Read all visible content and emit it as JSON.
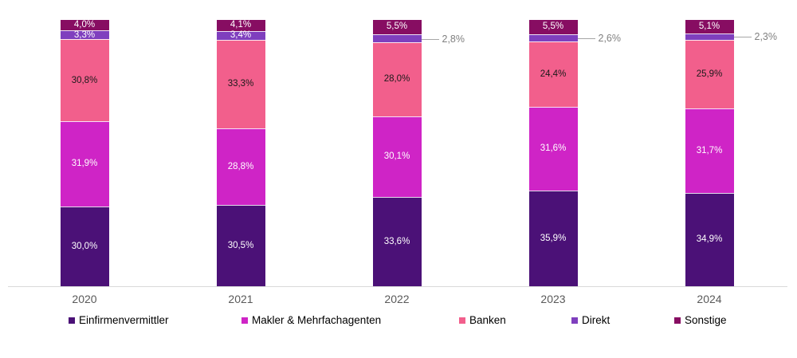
{
  "chart_data": {
    "type": "bar",
    "stacked": true,
    "orientation": "vertical",
    "title": "",
    "xlabel": "",
    "ylabel": "",
    "ylim": [
      0,
      100
    ],
    "grid": false,
    "legend_position": "bottom",
    "categories": [
      "2020",
      "2021",
      "2022",
      "2023",
      "2024"
    ],
    "series": [
      {
        "name": "Einfirmenvermittler",
        "color": "#4B1177",
        "label_color": "#FFFFFF",
        "values": [
          30.0,
          30.5,
          33.6,
          35.9,
          34.9
        ],
        "labels": [
          "30,0%",
          "30,5%",
          "33,6%",
          "35,9%",
          "34,9%"
        ],
        "label_outside": [
          false,
          false,
          false,
          false,
          false
        ]
      },
      {
        "name": "Makler & Mehrfachagenten",
        "color": "#CF24C6",
        "label_color": "#FFFFFF",
        "values": [
          31.9,
          28.8,
          30.1,
          31.6,
          31.7
        ],
        "labels": [
          "31,9%",
          "28,8%",
          "30,1%",
          "31,6%",
          "31,7%"
        ],
        "label_outside": [
          false,
          false,
          false,
          false,
          false
        ]
      },
      {
        "name": "Banken",
        "color": "#F25F8C",
        "label_color": "#1A1A1A",
        "values": [
          30.8,
          33.3,
          28.0,
          24.4,
          25.9
        ],
        "labels": [
          "30,8%",
          "33,3%",
          "28,0%",
          "24,4%",
          "25,9%"
        ],
        "label_outside": [
          false,
          false,
          false,
          false,
          false
        ]
      },
      {
        "name": "Direkt",
        "color": "#7F3FBE",
        "label_color": "#FFFFFF",
        "values": [
          3.3,
          3.4,
          2.8,
          2.6,
          2.3
        ],
        "labels": [
          "3,3%",
          "3,4%",
          "2,8%",
          "2,6%",
          "2,3%"
        ],
        "label_outside": [
          false,
          false,
          true,
          true,
          true
        ]
      },
      {
        "name": "Sonstige",
        "color": "#870D62",
        "label_color": "#FFFFFF",
        "values": [
          4.0,
          4.1,
          5.5,
          5.5,
          5.1
        ],
        "labels": [
          "4,0%",
          "4,1%",
          "5,5%",
          "5,5%",
          "5,1%"
        ],
        "label_outside": [
          false,
          false,
          false,
          false,
          false
        ]
      }
    ],
    "colors": {
      "axis_line": "#D9D9D9",
      "tick_label": "#595959",
      "outside_label": "#808080",
      "leader_line": "#A6A6A6",
      "legend_text": "#000000",
      "background": "#FFFFFF"
    }
  }
}
